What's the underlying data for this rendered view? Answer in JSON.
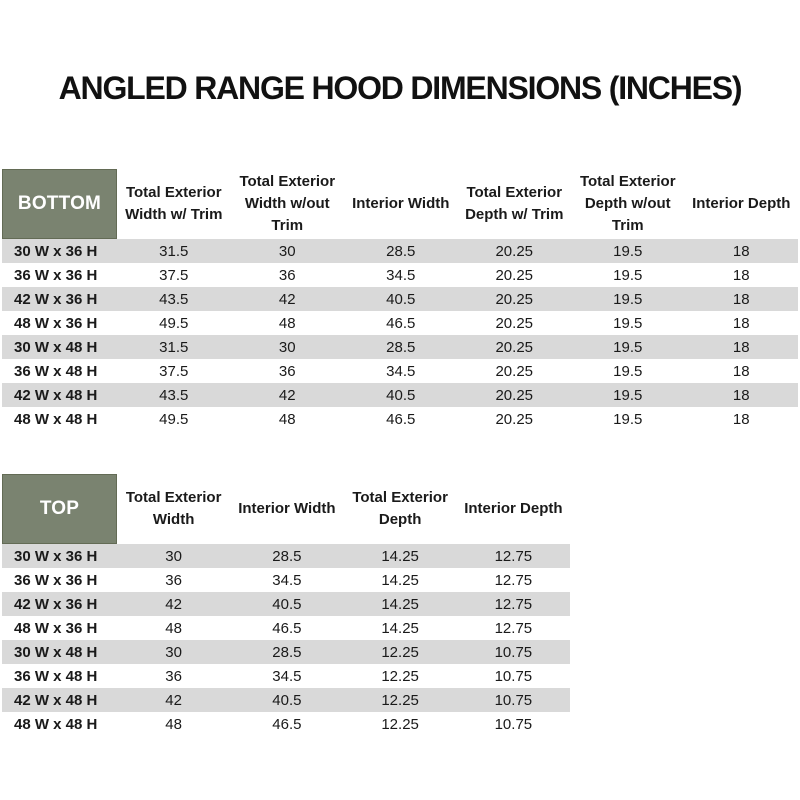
{
  "title": "ANGLED RANGE HOOD DIMENSIONS (INCHES)",
  "colors": {
    "header_green": "#7A8370",
    "stripe_gray": "#D9D9D9",
    "header_text": "#ffffff",
    "body_text": "#1a1a1a"
  },
  "tables": {
    "bottom": {
      "label": "BOTTOM",
      "columns": [
        "Total Exterior Width w/ Trim",
        "Total Exterior Width w/out Trim",
        "Interior Width",
        "Total Exterior Depth w/ Trim",
        "Total Exterior Depth w/out Trim",
        "Interior Depth"
      ],
      "rows": [
        {
          "label": "30 W x 36 H",
          "values": [
            "31.5",
            "30",
            "28.5",
            "20.25",
            "19.5",
            "18"
          ]
        },
        {
          "label": "36 W x 36 H",
          "values": [
            "37.5",
            "36",
            "34.5",
            "20.25",
            "19.5",
            "18"
          ]
        },
        {
          "label": "42 W x 36 H",
          "values": [
            "43.5",
            "42",
            "40.5",
            "20.25",
            "19.5",
            "18"
          ]
        },
        {
          "label": "48 W x 36 H",
          "values": [
            "49.5",
            "48",
            "46.5",
            "20.25",
            "19.5",
            "18"
          ]
        },
        {
          "label": "30 W x 48 H",
          "values": [
            "31.5",
            "30",
            "28.5",
            "20.25",
            "19.5",
            "18"
          ]
        },
        {
          "label": "36 W x 48 H",
          "values": [
            "37.5",
            "36",
            "34.5",
            "20.25",
            "19.5",
            "18"
          ]
        },
        {
          "label": "42 W x 48 H",
          "values": [
            "43.5",
            "42",
            "40.5",
            "20.25",
            "19.5",
            "18"
          ]
        },
        {
          "label": "48 W x 48 H",
          "values": [
            "49.5",
            "48",
            "46.5",
            "20.25",
            "19.5",
            "18"
          ]
        }
      ]
    },
    "top": {
      "label": "TOP",
      "columns": [
        "Total Exterior Width",
        "Interior Width",
        "Total Exterior Depth",
        "Interior Depth"
      ],
      "rows": [
        {
          "label": "30 W x 36 H",
          "values": [
            "30",
            "28.5",
            "14.25",
            "12.75"
          ]
        },
        {
          "label": "36 W x 36 H",
          "values": [
            "36",
            "34.5",
            "14.25",
            "12.75"
          ]
        },
        {
          "label": "42 W x 36 H",
          "values": [
            "42",
            "40.5",
            "14.25",
            "12.75"
          ]
        },
        {
          "label": "48 W x 36 H",
          "values": [
            "48",
            "46.5",
            "14.25",
            "12.75"
          ]
        },
        {
          "label": "30 W x 48 H",
          "values": [
            "30",
            "28.5",
            "12.25",
            "10.75"
          ]
        },
        {
          "label": "36 W x 48 H",
          "values": [
            "36",
            "34.5",
            "12.25",
            "10.75"
          ]
        },
        {
          "label": "42 W x 48 H",
          "values": [
            "42",
            "40.5",
            "12.25",
            "10.75"
          ]
        },
        {
          "label": "48 W x 48 H",
          "values": [
            "48",
            "46.5",
            "12.25",
            "10.75"
          ]
        }
      ]
    }
  }
}
